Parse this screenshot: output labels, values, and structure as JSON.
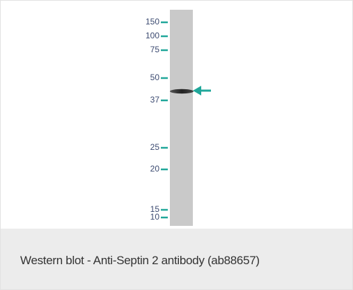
{
  "blot": {
    "markers": [
      "150",
      "100",
      "75",
      "50",
      "37",
      "25",
      "20",
      "15",
      "10"
    ]
  },
  "caption": "Western blot - Anti-Septin 2 antibody (ab88657)"
}
